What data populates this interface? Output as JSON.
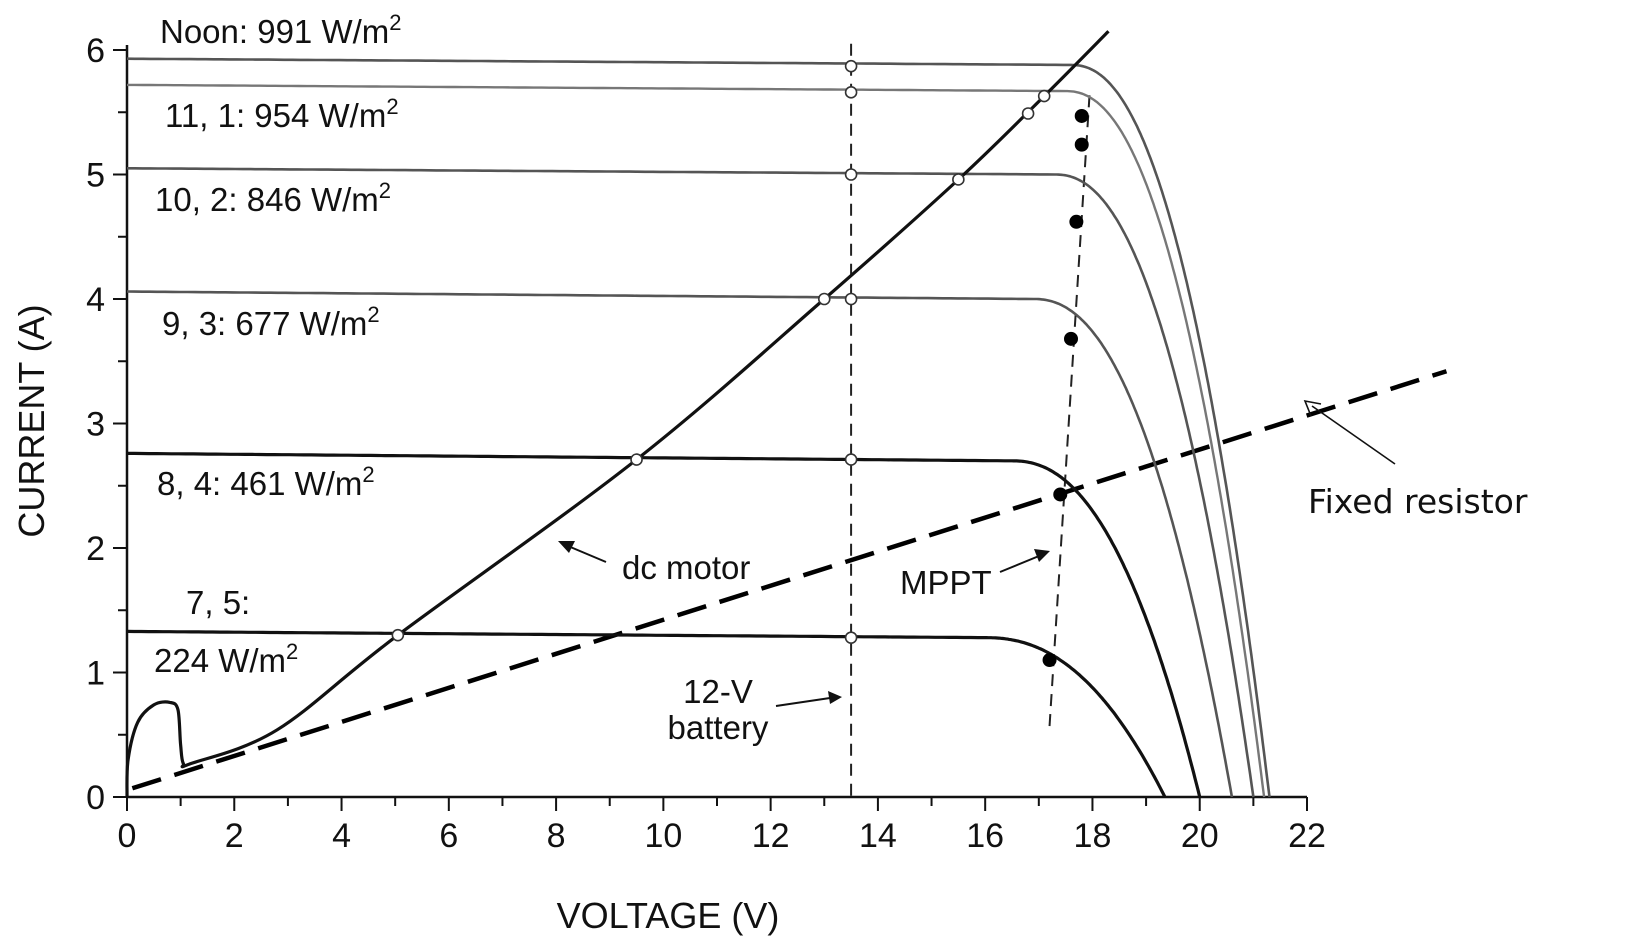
{
  "chart_data": {
    "type": "line",
    "title": "",
    "xlabel": "VOLTAGE (V)",
    "ylabel": "CURRENT (A)",
    "xlim": [
      0,
      22
    ],
    "ylim": [
      0,
      6
    ],
    "xticks": [
      0,
      2,
      4,
      6,
      8,
      10,
      12,
      14,
      16,
      18,
      20,
      22
    ],
    "yticks": [
      0,
      1,
      2,
      3,
      4,
      5,
      6
    ],
    "grid": false,
    "series": [
      {
        "name": "Noon:  991 W/m2",
        "label_main": "Noon:  991 W/m",
        "label_sup": "2",
        "isc": 5.93,
        "iflat": 5.88,
        "voc": 21.3,
        "knee": 17.6,
        "mpp": [
          17.8,
          5.47
        ],
        "battery_point": [
          13.5,
          5.87
        ],
        "motor_point": [
          17.1,
          5.63
        ],
        "color": "#555555",
        "width": 2.6
      },
      {
        "name": "11, 1:  954 W/m2",
        "label_main": "11, 1:  954 W/m",
        "label_sup": "2",
        "isc": 5.72,
        "iflat": 5.67,
        "voc": 21.2,
        "knee": 17.5,
        "mpp": [
          17.8,
          5.24
        ],
        "battery_point": [
          13.5,
          5.66
        ],
        "motor_point": [
          16.8,
          5.49
        ],
        "color": "#777777",
        "width": 2.4
      },
      {
        "name": "10, 2:  846 W/m2",
        "label_main": "10, 2:  846 W/m",
        "label_sup": "2",
        "isc": 5.05,
        "iflat": 5.0,
        "voc": 21.0,
        "knee": 17.3,
        "mpp": [
          17.7,
          4.62
        ],
        "battery_point": [
          13.5,
          5.0
        ],
        "motor_point": [
          15.5,
          4.96
        ],
        "color": "#555555",
        "width": 2.6
      },
      {
        "name": "9, 3:  677 W/m2",
        "label_main": "9, 3:  677 W/m",
        "label_sup": "2",
        "isc": 4.06,
        "iflat": 4.0,
        "voc": 20.6,
        "knee": 16.9,
        "mpp": [
          17.6,
          3.68
        ],
        "battery_point": [
          13.5,
          4.0
        ],
        "motor_point": [
          13.0,
          4.0
        ],
        "color": "#555555",
        "width": 2.6
      },
      {
        "name": "8, 4:  461 W/m2",
        "label_main": "8, 4:  461 W/m",
        "label_sup": "2",
        "isc": 2.76,
        "iflat": 2.7,
        "voc": 20.0,
        "knee": 16.5,
        "mpp": [
          17.4,
          2.43
        ],
        "battery_point": [
          13.5,
          2.71
        ],
        "motor_point": [
          9.5,
          2.71
        ],
        "color": "#111111",
        "width": 3.2
      },
      {
        "name": "7, 5:  224 W/m2",
        "label_main": "224 W/m",
        "label_line1": "7, 5:",
        "label_sup": "2",
        "isc": 1.33,
        "iflat": 1.28,
        "voc": 19.35,
        "knee": 16.0,
        "mpp": [
          17.2,
          1.1
        ],
        "battery_point": [
          13.5,
          1.28
        ],
        "motor_point": [
          5.05,
          1.3
        ],
        "color": "#111111",
        "width": 3.2
      }
    ],
    "dc_motor": {
      "label": "dc motor",
      "points": [
        [
          0,
          0.0
        ],
        [
          0.02,
          0.3
        ],
        [
          0.2,
          0.6
        ],
        [
          0.5,
          0.74
        ],
        [
          0.8,
          0.76
        ],
        [
          0.95,
          0.7
        ],
        [
          1.0,
          0.42
        ],
        [
          1.05,
          0.27
        ],
        [
          1.2,
          0.27
        ],
        [
          2.8,
          0.54
        ],
        [
          5.05,
          1.3
        ],
        [
          9.5,
          2.71
        ],
        [
          13.0,
          4.0
        ],
        [
          15.5,
          4.96
        ],
        [
          17.1,
          5.63
        ],
        [
          18.3,
          6.15
        ]
      ]
    },
    "fixed_resistor": {
      "label": "Fixed resistor",
      "points": [
        [
          0.1,
          0.07
        ],
        [
          24.6,
          3.42
        ]
      ]
    },
    "battery_line": {
      "label_line1": "12-V",
      "label_line2": "battery",
      "x": 13.5,
      "y_range": [
        -0.05,
        6.05
      ]
    },
    "mppt_line": {
      "label": "MPPT",
      "points": [
        [
          17.2,
          0.57
        ],
        [
          17.95,
          5.67
        ]
      ]
    }
  }
}
